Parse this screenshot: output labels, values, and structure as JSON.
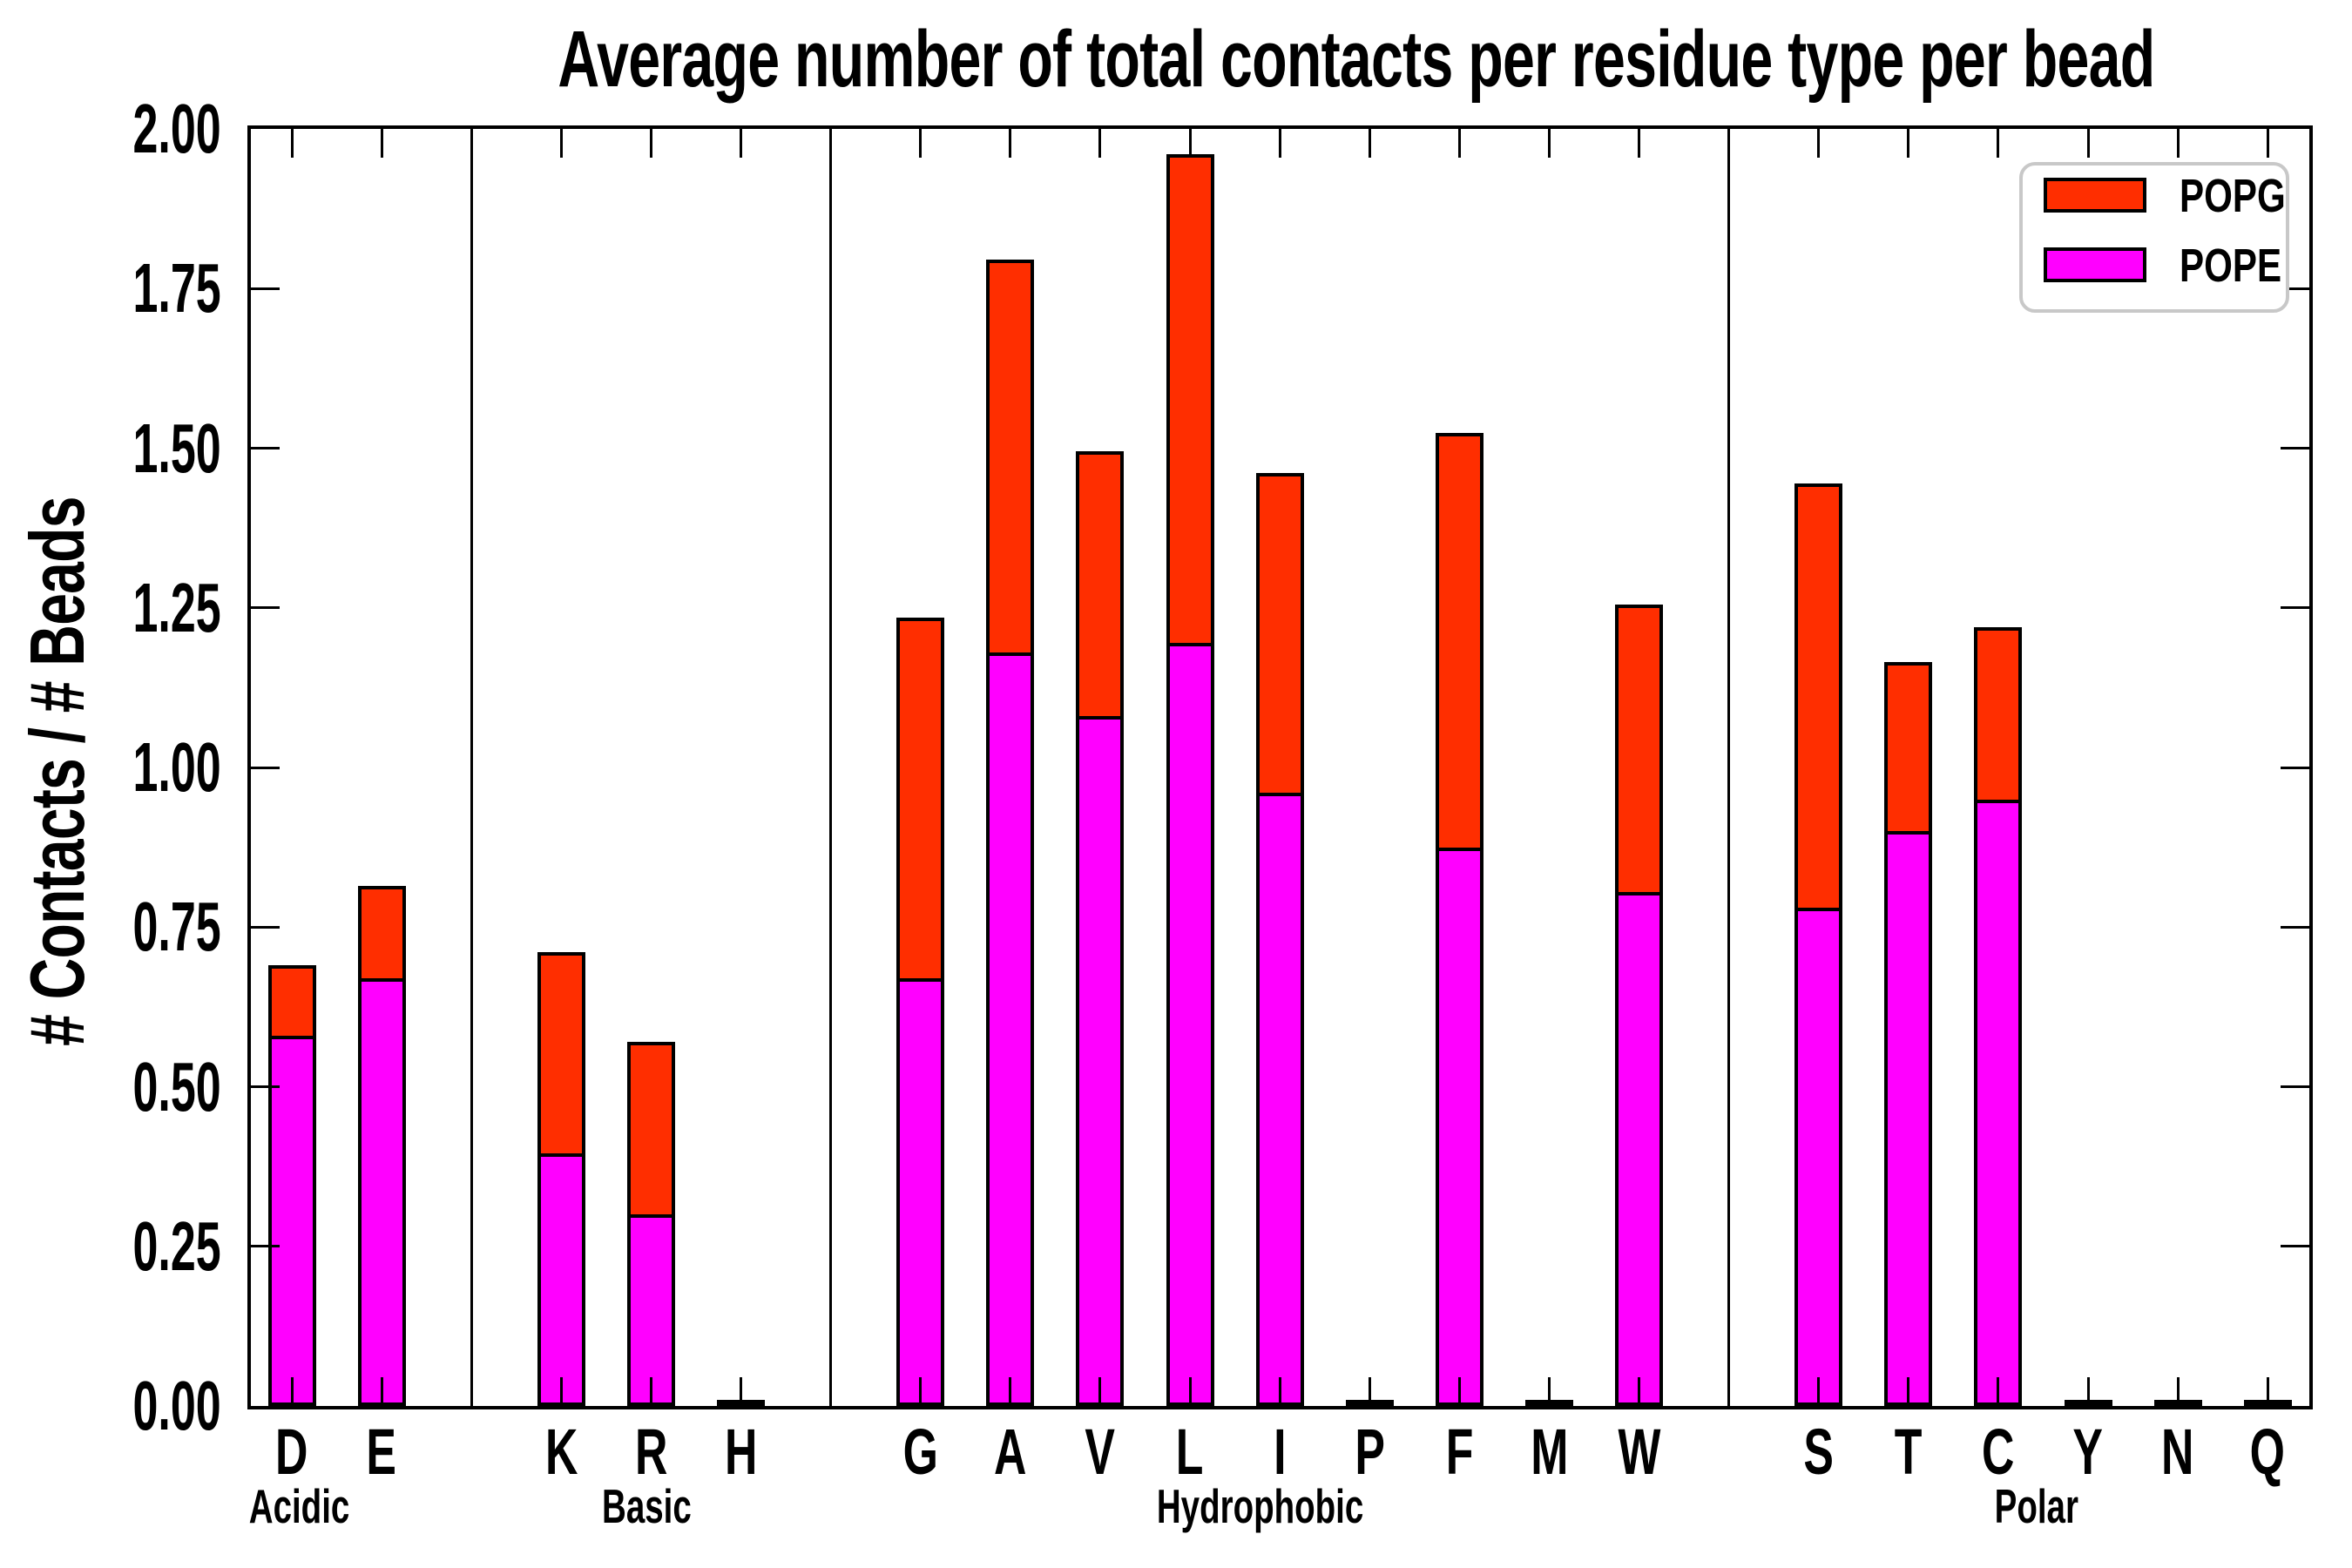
{
  "title": "Average number of total contacts per residue type per bead",
  "ylabel": "# Contacts / # Beads",
  "colors": {
    "popg": "#FF2E00",
    "pope": "#FF00FF",
    "edge": "#000000",
    "legend_border": "#C8C8C8"
  },
  "legend": {
    "position": "upper right",
    "items": [
      {
        "label": "POPG",
        "color_key": "popg"
      },
      {
        "label": "POPE",
        "color_key": "pope"
      }
    ]
  },
  "chart_data": {
    "type": "bar",
    "stacked": true,
    "grid": false,
    "legend_position": "upper right",
    "title": "Average number of total contacts per residue type per bead",
    "xlabel": "",
    "ylabel": "# Contacts / # Beads",
    "ylim": [
      0,
      2
    ],
    "ytick_step": 0.25,
    "yticks": [
      "0.00",
      "0.25",
      "0.50",
      "0.75",
      "1.00",
      "1.25",
      "1.50",
      "1.75",
      "2.00"
    ],
    "categories": [
      "D",
      "E",
      "K",
      "R",
      "H",
      "G",
      "A",
      "V",
      "L",
      "I",
      "P",
      "F",
      "M",
      "W",
      "S",
      "T",
      "C",
      "Y",
      "N",
      "Q"
    ],
    "groups": [
      {
        "label": "Acidic",
        "members": [
          "D",
          "E"
        ]
      },
      {
        "label": "Basic",
        "members": [
          "K",
          "R",
          "H"
        ]
      },
      {
        "label": "Hydrophobic",
        "members": [
          "G",
          "A",
          "V",
          "L",
          "I",
          "P",
          "F",
          "M",
          "W"
        ]
      },
      {
        "label": "Polar",
        "members": [
          "S",
          "T",
          "C",
          "Y",
          "N",
          "Q"
        ]
      }
    ],
    "series": [
      {
        "name": "POPG",
        "color": "#FF2E00",
        "values": [
          0.11,
          0.145,
          0.315,
          0.27,
          0.003,
          0.565,
          0.615,
          0.415,
          0.765,
          0.5,
          0.003,
          0.65,
          0.003,
          0.45,
          0.665,
          0.265,
          0.27,
          0.003,
          0.003,
          0.003
        ]
      },
      {
        "name": "POPE",
        "color": "#FF00FF",
        "values": [
          0.58,
          0.67,
          0.395,
          0.3,
          0.003,
          0.67,
          1.18,
          1.08,
          1.195,
          0.96,
          0.003,
          0.875,
          0.003,
          0.805,
          0.78,
          0.9,
          0.95,
          0.003,
          0.003,
          0.003
        ]
      }
    ],
    "totals": [
      0.69,
      0.815,
      0.71,
      0.57,
      0.006,
      1.235,
      1.795,
      1.495,
      1.96,
      1.46,
      0.006,
      1.525,
      0.006,
      1.255,
      1.445,
      1.165,
      1.22,
      0.006,
      0.006,
      0.006
    ]
  }
}
